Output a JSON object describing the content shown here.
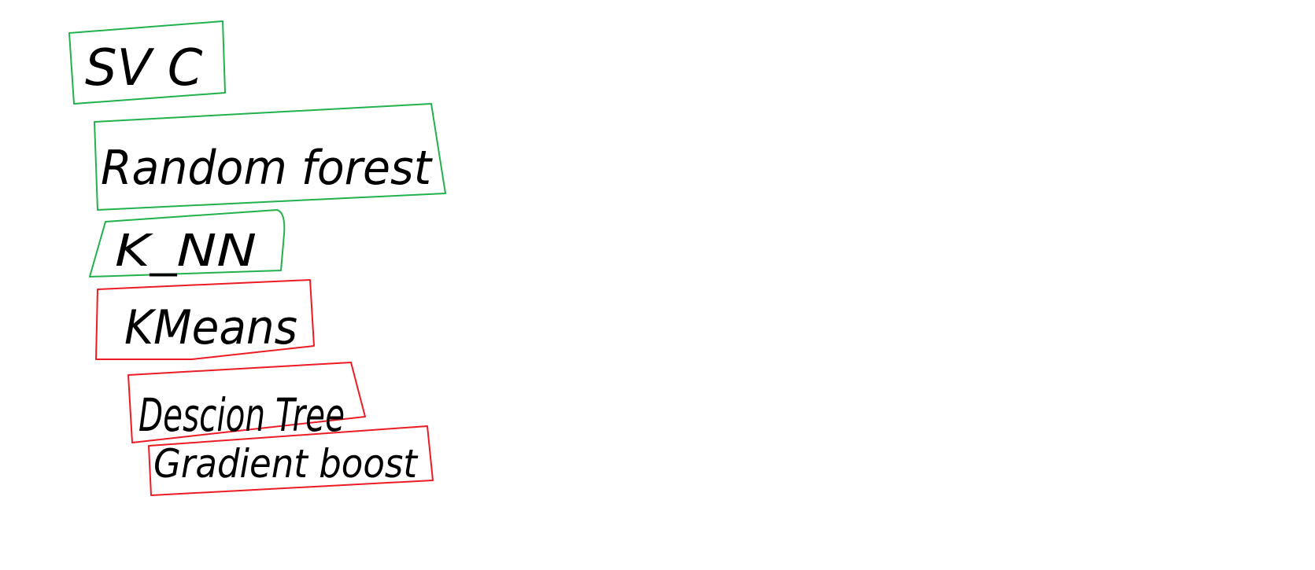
{
  "colors": {
    "green": "#22b14c",
    "red": "#ed1c24",
    "ink": "#000000",
    "background": "#ffffff"
  },
  "items": [
    {
      "label": "SV C",
      "status": "green"
    },
    {
      "label": "Random forest",
      "status": "green"
    },
    {
      "label": "K_NN",
      "status": "green"
    },
    {
      "label": "KMeans",
      "status": "red"
    },
    {
      "label": "Descion Tree",
      "status": "red"
    },
    {
      "label": "Gradient boost",
      "status": "red"
    }
  ]
}
